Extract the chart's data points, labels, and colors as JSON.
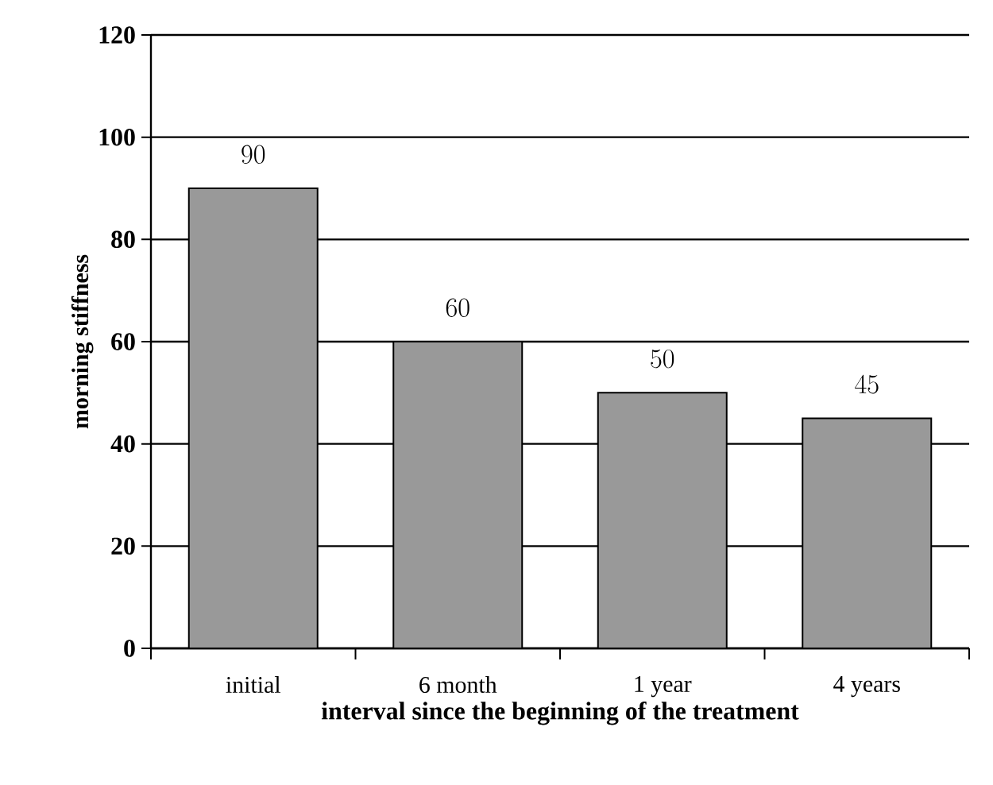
{
  "chart_data": {
    "type": "bar",
    "xlabel": "interval since the beginning of the treatment",
    "ylabel": "morning stiffness",
    "categories": [
      "initial",
      "6 month",
      "1 year",
      "4 years"
    ],
    "values": [
      90,
      60,
      50,
      45
    ],
    "color": "#999999",
    "ylim": [
      0,
      120
    ],
    "yticks": [
      0,
      20,
      40,
      60,
      80,
      100,
      120
    ],
    "grid": "y",
    "data_labels": true
  }
}
